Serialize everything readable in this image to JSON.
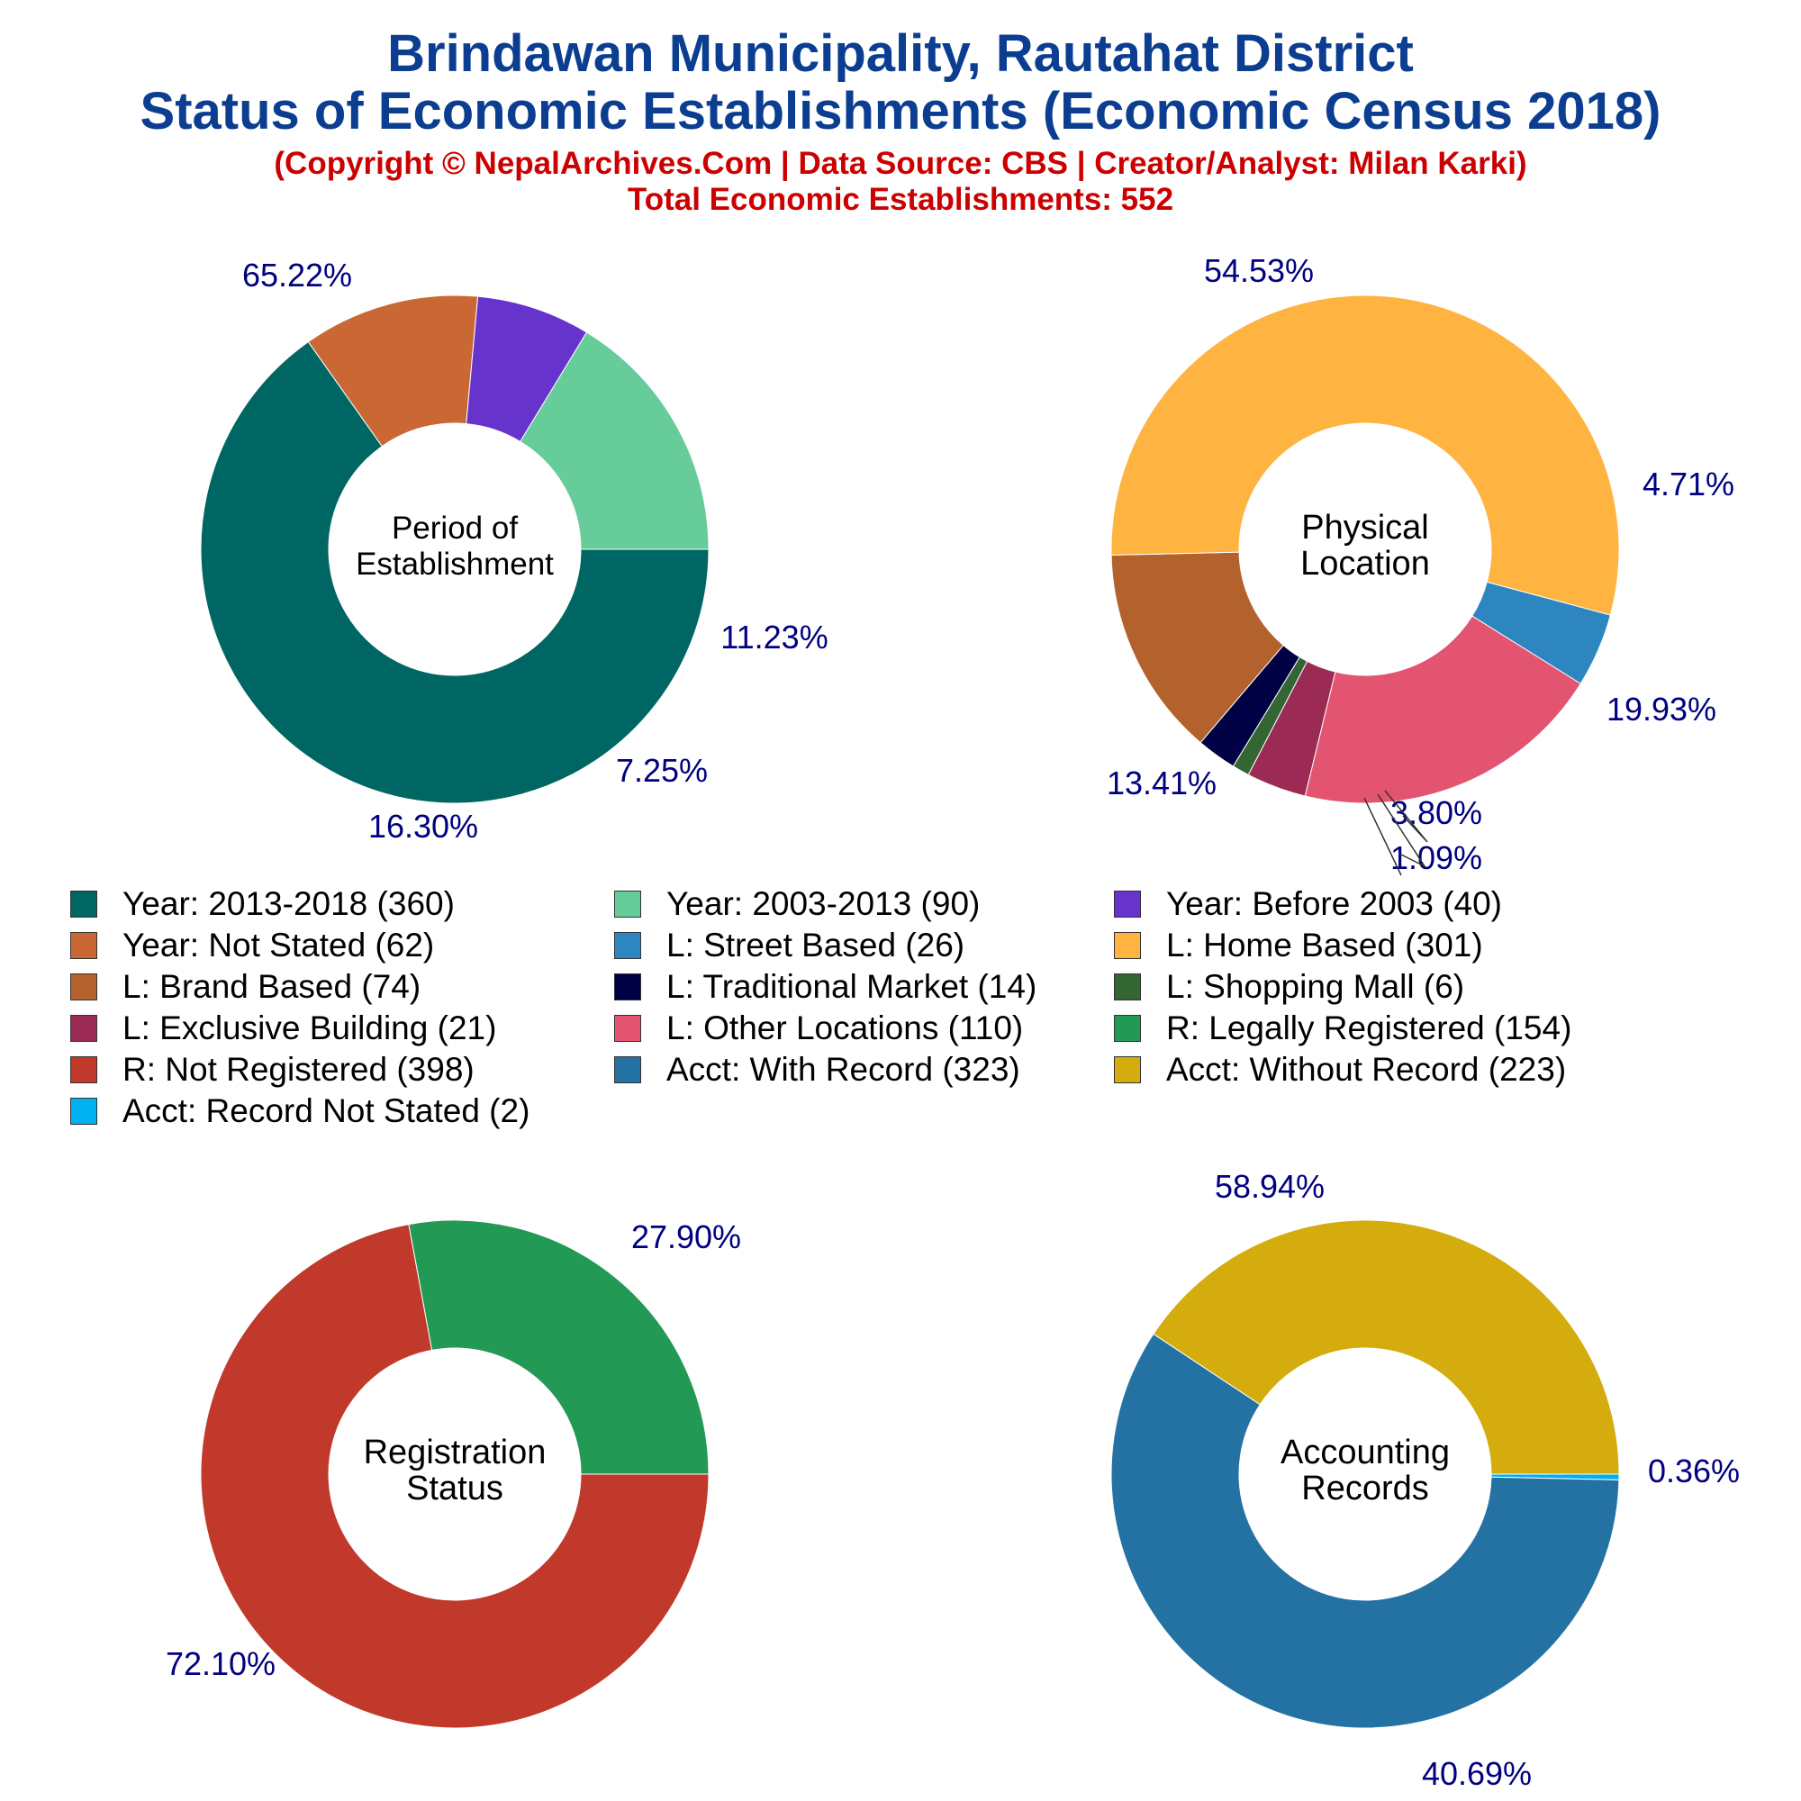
{
  "header": {
    "title_line1": "Brindawan Municipality, Rautahat District",
    "title_line2": "Status of Economic Establishments (Economic Census 2018)",
    "credit": "(Copyright © NepalArchives.Com | Data Source: CBS | Creator/Analyst: Milan Karki)",
    "total": "Total Economic Establishments: 552"
  },
  "chart_data": [
    {
      "type": "pie",
      "donut": true,
      "center_label": [
        "Period of",
        "Establishment"
      ],
      "slices": [
        {
          "label": "Year: 2013-2018",
          "value": 360,
          "pct": "65.22%",
          "color": "#006663"
        },
        {
          "label": "Year: Not Stated",
          "value": 62,
          "pct": "11.23%",
          "color": "#c96834"
        },
        {
          "label": "Year: Before 2003",
          "value": 40,
          "pct": "7.25%",
          "color": "#6633cc"
        },
        {
          "label": "Year: 2003-2013",
          "value": 90,
          "pct": "16.30%",
          "color": "#66cc99"
        }
      ]
    },
    {
      "type": "pie",
      "donut": true,
      "center_label": [
        "Physical",
        "Location"
      ],
      "slices": [
        {
          "label": "L: Street Based",
          "value": 26,
          "pct": "4.71%",
          "color": "#2e86c1"
        },
        {
          "label": "L: Other Locations",
          "value": 110,
          "pct": "19.93%",
          "color": "#e35471"
        },
        {
          "label": "L: Exclusive Building",
          "value": 21,
          "pct": "3.80%",
          "color": "#9b2a55"
        },
        {
          "label": "L: Shopping Mall",
          "value": 6,
          "pct": "1.09%",
          "color": "#336633"
        },
        {
          "label": "L: Traditional Market",
          "value": 14,
          "pct": "",
          "color": "#000044"
        },
        {
          "label": "L: Brand Based",
          "value": 74,
          "pct": "13.41%",
          "color": "#b3612d"
        },
        {
          "label": "L: Home Based",
          "value": 301,
          "pct": "54.53%",
          "color": "#ffb340"
        }
      ]
    },
    {
      "type": "pie",
      "donut": true,
      "center_label": [
        "Registration",
        "Status"
      ],
      "slices": [
        {
          "label": "R: Not Registered",
          "value": 398,
          "pct": "72.10%",
          "color": "#c0392b"
        },
        {
          "label": "R: Legally Registered",
          "value": 154,
          "pct": "27.90%",
          "color": "#229954"
        }
      ]
    },
    {
      "type": "pie",
      "donut": true,
      "center_label": [
        "Accounting",
        "Records"
      ],
      "slices": [
        {
          "label": "Acct: Record Not Stated",
          "value": 2,
          "pct": "0.36%",
          "color": "#00b0f0"
        },
        {
          "label": "Acct: With Record",
          "value": 323,
          "pct": "58.94%",
          "color": "#2471a3"
        },
        {
          "label": "Acct: Without Record",
          "value": 223,
          "pct": "40.69%",
          "color": "#d4ac0d"
        }
      ]
    }
  ],
  "legend": [
    {
      "text": "Year: 2013-2018 (360)",
      "color": "#006663"
    },
    {
      "text": "Year: 2003-2013 (90)",
      "color": "#66cc99"
    },
    {
      "text": "Year: Before 2003 (40)",
      "color": "#6633cc"
    },
    {
      "text": "Year: Not Stated (62)",
      "color": "#c96834"
    },
    {
      "text": "L: Street Based (26)",
      "color": "#2e86c1"
    },
    {
      "text": "L: Home Based (301)",
      "color": "#ffb340"
    },
    {
      "text": "L: Brand Based (74)",
      "color": "#b3612d"
    },
    {
      "text": "L: Traditional Market (14)",
      "color": "#000044"
    },
    {
      "text": "L: Shopping Mall (6)",
      "color": "#336633"
    },
    {
      "text": "L: Exclusive Building (21)",
      "color": "#9b2a55"
    },
    {
      "text": "L: Other Locations (110)",
      "color": "#e35471"
    },
    {
      "text": "R: Legally Registered (154)",
      "color": "#229954"
    },
    {
      "text": "R: Not Registered (398)",
      "color": "#c0392b"
    },
    {
      "text": "Acct: With Record (323)",
      "color": "#2471a3"
    },
    {
      "text": "Acct: Without Record (223)",
      "color": "#d4ac0d"
    },
    {
      "text": "Acct: Record Not Stated (2)",
      "color": "#00b0f0"
    }
  ]
}
